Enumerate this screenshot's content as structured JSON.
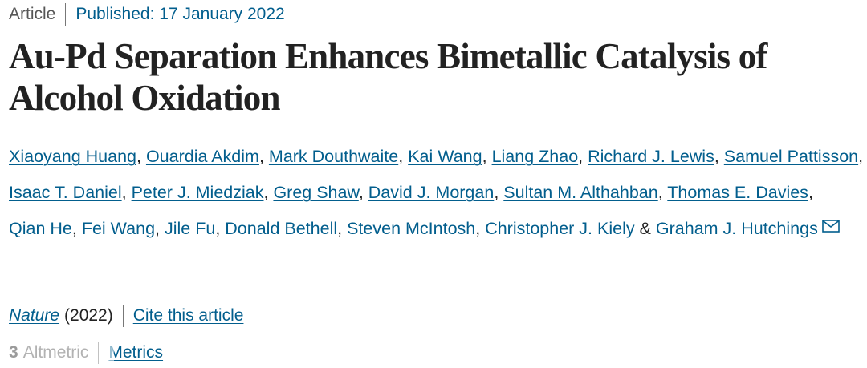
{
  "header": {
    "article_type": "Article",
    "published": "Published: 17 January 2022"
  },
  "title": "Au-Pd Separation Enhances Bimetallic Catalysis of Alcohol Oxidation",
  "authors": [
    "Xiaoyang Huang",
    "Ouardia Akdim",
    "Mark Douthwaite",
    "Kai Wang",
    "Liang Zhao",
    "Richard J. Lewis",
    "Samuel Pattisson",
    "Isaac T. Daniel",
    "Peter J. Miedziak",
    "Greg Shaw",
    "David J. Morgan",
    "Sultan M. Althahban",
    "Thomas E. Davies",
    "Qian He",
    "Fei Wang",
    "Jile Fu",
    "Donald Bethell",
    "Steven McIntosh",
    "Christopher J. Kiely",
    "Graham J. Hutchings"
  ],
  "authors_separator": ", ",
  "authors_final_joiner": " & ",
  "icons": {
    "corresponding_author": "mail-icon"
  },
  "journal": {
    "name": "Nature",
    "year": "(2022)",
    "cite_link": "Cite this article"
  },
  "metrics": {
    "altmetric_score": "3",
    "altmetric_label": "Altmetric",
    "metrics_link": "Metrics"
  },
  "colors": {
    "link": "#025e8d",
    "text": "#222222",
    "muted": "#555555"
  }
}
